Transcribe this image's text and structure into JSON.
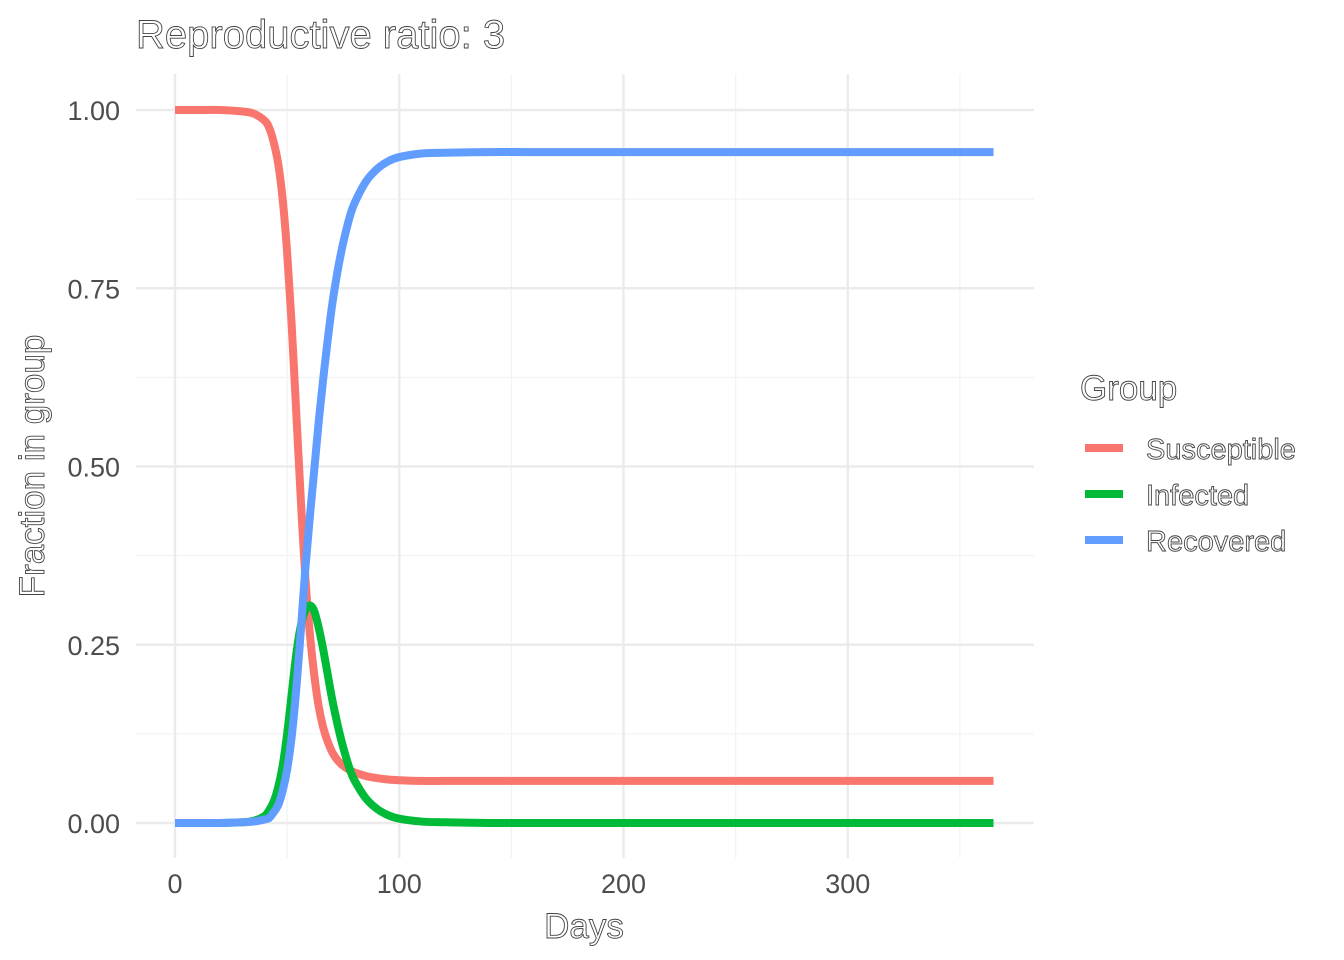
{
  "chart_data": {
    "type": "line",
    "title": "Reproductive ratio: 3",
    "xlabel": "Days",
    "ylabel": "Fraction in group",
    "xlim": [
      0,
      365
    ],
    "ylim": [
      0,
      1
    ],
    "x_ticks": [
      0,
      100,
      200,
      300
    ],
    "x_tick_labels": [
      "0",
      "100",
      "200",
      "300"
    ],
    "y_ticks": [
      0,
      0.25,
      0.5,
      0.75,
      1
    ],
    "y_tick_labels": [
      "0.00",
      "0.25",
      "0.50",
      "0.75",
      "1.00"
    ],
    "grid": true,
    "legend": {
      "title": "Group",
      "position": "right"
    },
    "x": [
      0,
      10,
      20,
      30,
      35,
      40,
      42,
      44,
      46,
      48,
      50,
      52,
      54,
      56,
      58,
      60,
      62,
      64,
      66,
      68,
      70,
      72,
      74,
      76,
      78,
      80,
      85,
      90,
      95,
      100,
      110,
      120,
      140,
      160,
      200,
      250,
      300,
      365
    ],
    "series": [
      {
        "name": "Susceptible",
        "color": "#f8766d",
        "values": [
          1.0,
          1.0,
          1.0,
          0.998,
          0.995,
          0.985,
          0.975,
          0.955,
          0.925,
          0.875,
          0.8,
          0.7,
          0.58,
          0.46,
          0.35,
          0.27,
          0.21,
          0.165,
          0.135,
          0.115,
          0.1,
          0.09,
          0.083,
          0.078,
          0.074,
          0.071,
          0.066,
          0.063,
          0.061,
          0.06,
          0.059,
          0.059,
          0.059,
          0.059,
          0.059,
          0.059,
          0.059,
          0.059
        ]
      },
      {
        "name": "Infected",
        "color": "#00ba38",
        "values": [
          0.0,
          0.0,
          0.0,
          0.001,
          0.003,
          0.01,
          0.018,
          0.03,
          0.05,
          0.08,
          0.125,
          0.18,
          0.235,
          0.275,
          0.298,
          0.305,
          0.298,
          0.275,
          0.245,
          0.21,
          0.175,
          0.145,
          0.118,
          0.095,
          0.075,
          0.06,
          0.035,
          0.02,
          0.011,
          0.006,
          0.002,
          0.001,
          0.0,
          0.0,
          0.0,
          0.0,
          0.0,
          0.0
        ]
      },
      {
        "name": "Recovered",
        "color": "#619cff",
        "values": [
          0.0,
          0.0,
          0.0,
          0.001,
          0.002,
          0.005,
          0.007,
          0.015,
          0.025,
          0.045,
          0.075,
          0.12,
          0.185,
          0.265,
          0.352,
          0.425,
          0.492,
          0.56,
          0.62,
          0.675,
          0.725,
          0.765,
          0.799,
          0.827,
          0.851,
          0.869,
          0.899,
          0.917,
          0.928,
          0.934,
          0.939,
          0.94,
          0.941,
          0.941,
          0.941,
          0.941,
          0.941,
          0.941
        ]
      }
    ]
  }
}
